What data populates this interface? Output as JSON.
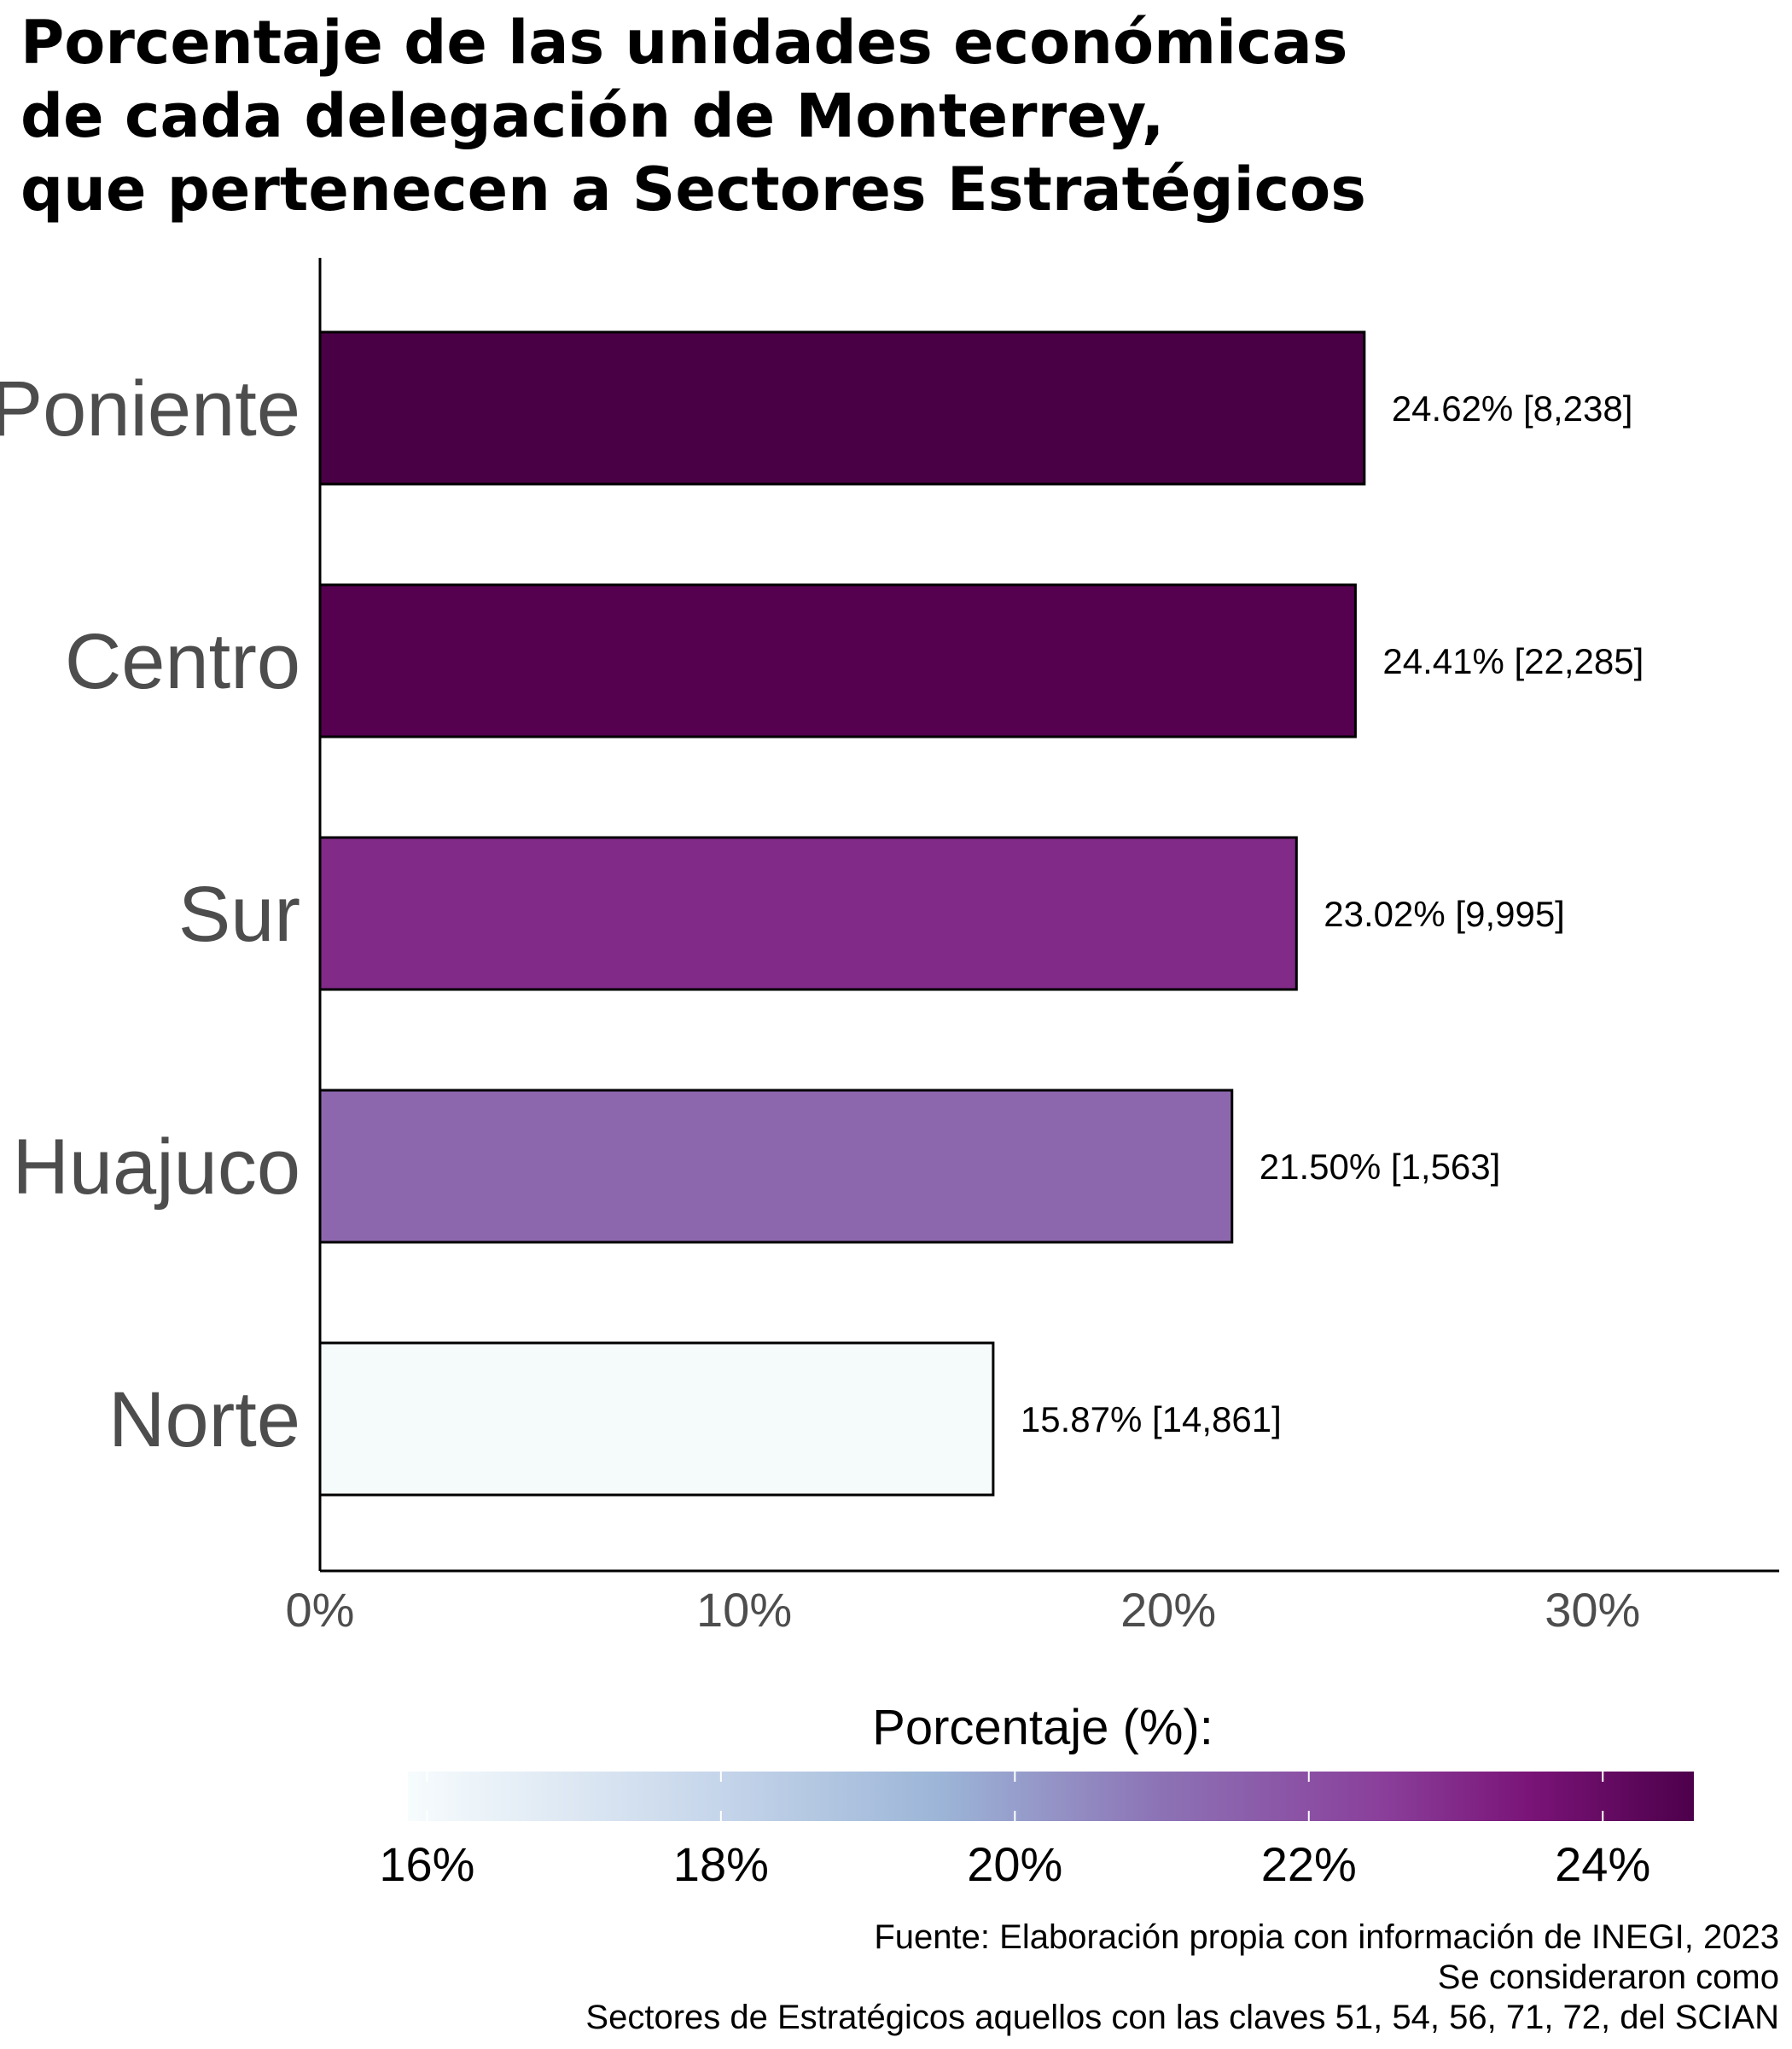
{
  "chart_data": {
    "type": "bar",
    "orientation": "horizontal",
    "title_lines": [
      "Porcentaje de las unidades económicas",
      "de cada delegación de Monterrey,",
      "que pertenecen a Sectores Estratégicos"
    ],
    "categories": [
      "Poniente",
      "Centro",
      "Sur",
      "Huajuco",
      "Norte"
    ],
    "values": [
      24.62,
      24.41,
      23.02,
      21.5,
      15.87
    ],
    "counts": [
      8238,
      22285,
      9995,
      1563,
      14861
    ],
    "data_labels": [
      "24.62% [8,238]",
      "24.41% [22,285]",
      "23.02% [9,995]",
      "21.50% [1,563]",
      "15.87% [14,861]"
    ],
    "bar_colors": [
      "#4a0044",
      "#560050",
      "#812a88",
      "#8c67ae",
      "#f5fbfb"
    ],
    "x_ticks": [
      0,
      10,
      20,
      30
    ],
    "x_tick_labels": [
      "0%",
      "10%",
      "20%",
      "30%"
    ],
    "xlim": [
      0,
      34.4
    ],
    "grid": false,
    "legend": {
      "title": "Porcentaje (%):",
      "position": "bottom",
      "range": [
        15.87,
        24.62
      ],
      "ticks": [
        16,
        18,
        20,
        22,
        24
      ],
      "tick_labels": [
        "16%",
        "18%",
        "20%",
        "22%",
        "24%"
      ],
      "gradient_stops": [
        {
          "value": 15.87,
          "color": "#f7fcfd"
        },
        {
          "value": 18.0,
          "color": "#c5d5ea"
        },
        {
          "value": 19.5,
          "color": "#9cb5d7"
        },
        {
          "value": 21.0,
          "color": "#8c72b5"
        },
        {
          "value": 22.5,
          "color": "#8a3f9b"
        },
        {
          "value": 23.5,
          "color": "#7a1478"
        },
        {
          "value": 24.62,
          "color": "#4d004b"
        }
      ]
    },
    "caption_lines": [
      "Fuente: Elaboración propia con información de INEGI, 2023",
      "Se consideraron como",
      "Sectores de Estratégicos aquellos con las claves 51, 54, 56, 71, 72, del SCIAN"
    ]
  }
}
